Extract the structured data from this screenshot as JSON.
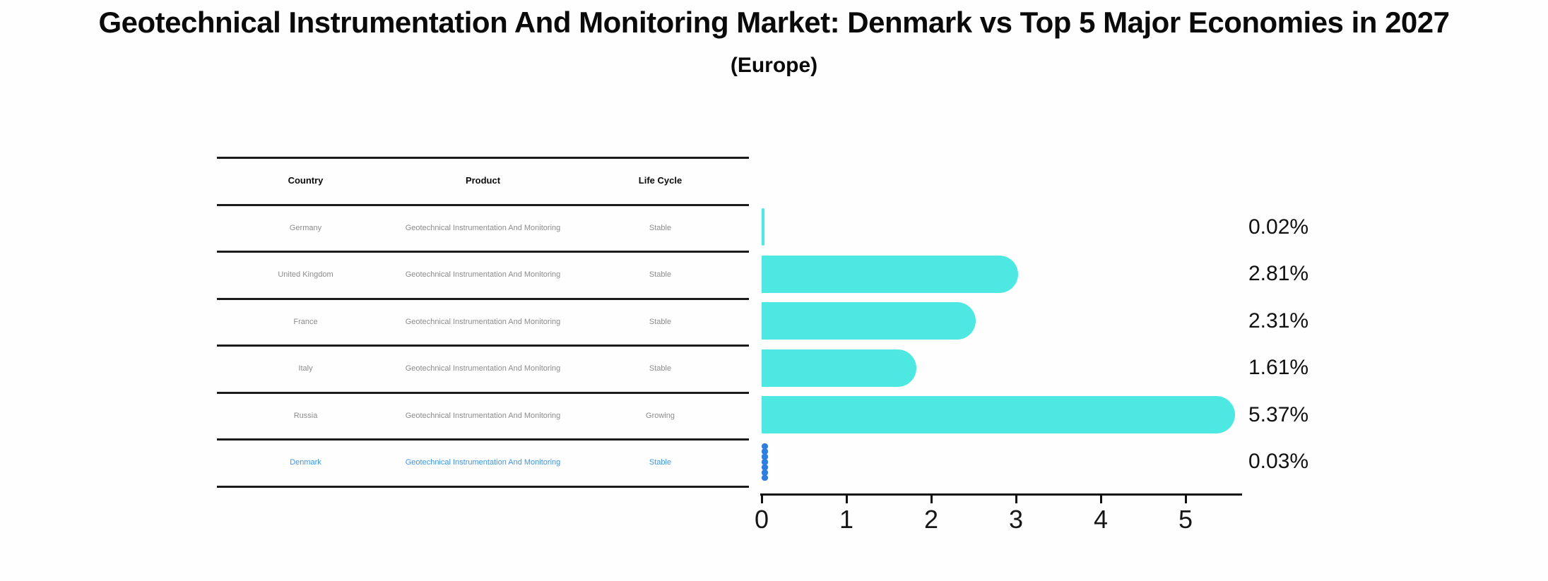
{
  "page": {
    "title": "Geotechnical Instrumentation And Monitoring Market: Denmark vs Top 5 Major Economies in 2027",
    "subtitle": "(Europe)"
  },
  "table": {
    "headers": [
      "Country",
      "Product",
      "Life Cycle"
    ],
    "rows": [
      {
        "country": "Germany",
        "product": "Geotechnical Instrumentation And Monitoring",
        "life_cycle": "Stable",
        "highlighted": false
      },
      {
        "country": "United Kingdom",
        "product": "Geotechnical Instrumentation And Monitoring",
        "life_cycle": "Stable",
        "highlighted": false
      },
      {
        "country": "France",
        "product": "Geotechnical Instrumentation And Monitoring",
        "life_cycle": "Stable",
        "highlighted": false
      },
      {
        "country": "Italy",
        "product": "Geotechnical Instrumentation And Monitoring",
        "life_cycle": "Stable",
        "highlighted": false
      },
      {
        "country": "Russia",
        "product": "Geotechnical Instrumentation And Monitoring",
        "life_cycle": "Growing",
        "highlighted": false
      },
      {
        "country": "Denmark",
        "product": "Geotechnical Instrumentation And Monitoring",
        "life_cycle": "Stable",
        "highlighted": true
      }
    ]
  },
  "chart_data": {
    "type": "bar",
    "orientation": "horizontal",
    "title": "Geotechnical Instrumentation And Monitoring Market: Denmark vs Top 5 Major Economies in 2027 (Europe)",
    "categories": [
      "Germany",
      "United Kingdom",
      "France",
      "Italy",
      "Russia",
      "Denmark"
    ],
    "values": [
      0.02,
      2.81,
      2.31,
      1.61,
      5.37,
      0.03
    ],
    "value_labels": [
      "0.02%",
      "2.81%",
      "2.31%",
      "1.61%",
      "5.37%",
      "0.03%"
    ],
    "x_ticks": [
      "0",
      "1",
      "2",
      "3",
      "4",
      "5"
    ],
    "xlim": [
      0,
      5.65
    ],
    "xlabel": "",
    "ylabel": "",
    "grid": false,
    "legend": false,
    "bar_color": "#4DE8E2",
    "highlight_color": "#2E7EE0",
    "highlight_index": 5,
    "highlight_style": "scalloped"
  },
  "colors": {
    "bar_cyan": "#4DE8E2",
    "denmark_blue": "#2E7EE0",
    "denmark_text": "#3d96e8",
    "axis": "#111111",
    "cell_text": "#8c8c8c"
  }
}
